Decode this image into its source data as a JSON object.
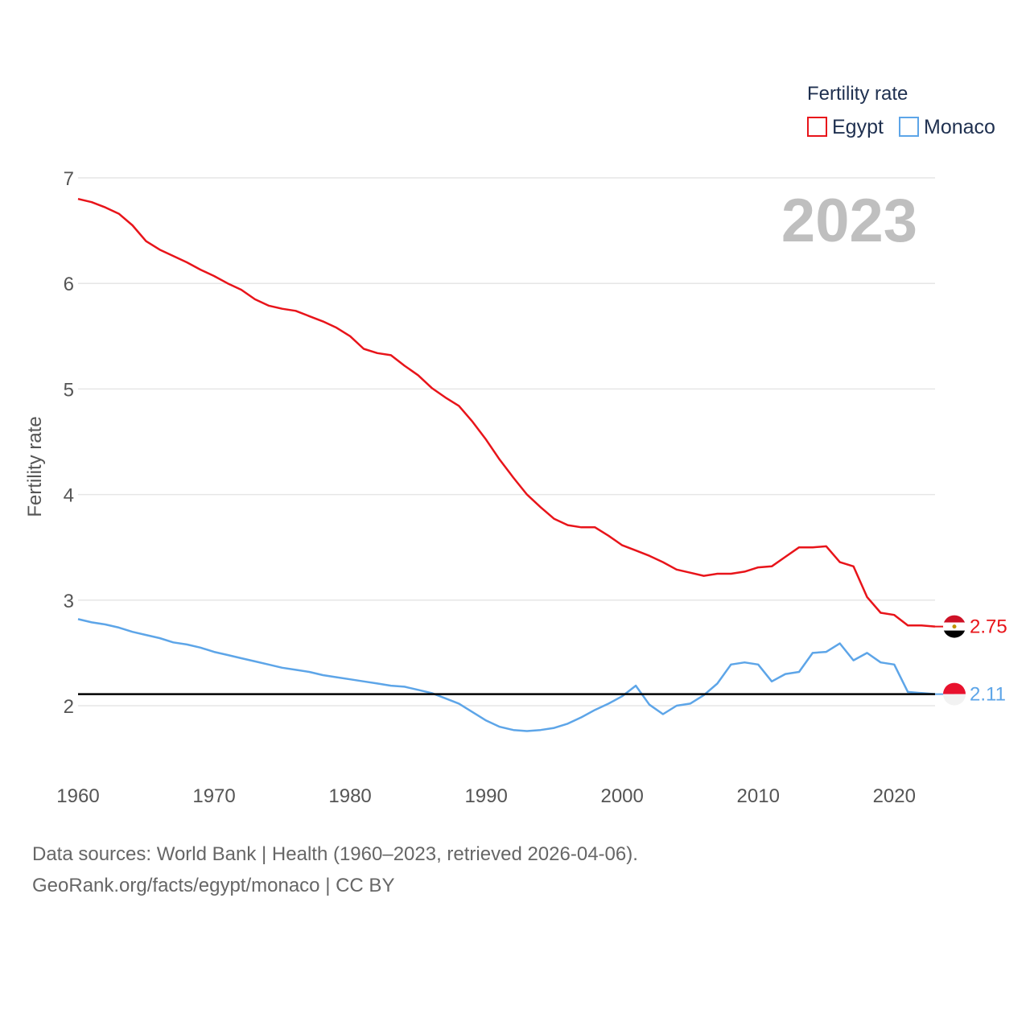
{
  "chart_data": {
    "type": "line",
    "title": "",
    "ylabel": "Fertility rate",
    "xlabel": "",
    "xlim": [
      1960,
      2023
    ],
    "ylim": [
      1.5,
      7
    ],
    "x_ticks": [
      "1960",
      "1970",
      "1980",
      "1990",
      "2000",
      "2010",
      "2020"
    ],
    "y_ticks": [
      "2",
      "3",
      "4",
      "5",
      "6",
      "7"
    ],
    "year_label": "2023",
    "legend": {
      "title": "Fertility rate",
      "position": "top-right"
    },
    "reference_line": {
      "value": 2.11,
      "color": "#000000"
    },
    "x": [
      1960,
      1961,
      1962,
      1963,
      1964,
      1965,
      1966,
      1967,
      1968,
      1969,
      1970,
      1971,
      1972,
      1973,
      1974,
      1975,
      1976,
      1977,
      1978,
      1979,
      1980,
      1981,
      1982,
      1983,
      1984,
      1985,
      1986,
      1987,
      1988,
      1989,
      1990,
      1991,
      1992,
      1993,
      1994,
      1995,
      1996,
      1997,
      1998,
      1999,
      2000,
      2001,
      2002,
      2003,
      2004,
      2005,
      2006,
      2007,
      2008,
      2009,
      2010,
      2011,
      2012,
      2013,
      2014,
      2015,
      2016,
      2017,
      2018,
      2019,
      2020,
      2021,
      2022,
      2023
    ],
    "series": [
      {
        "name": "Egypt",
        "color": "#e8141a",
        "end_label": "2.75",
        "values": [
          6.8,
          6.77,
          6.72,
          6.66,
          6.55,
          6.4,
          6.32,
          6.26,
          6.2,
          6.13,
          6.07,
          6.0,
          5.94,
          5.85,
          5.79,
          5.76,
          5.74,
          5.69,
          5.64,
          5.58,
          5.5,
          5.38,
          5.34,
          5.32,
          5.22,
          5.13,
          5.01,
          4.92,
          4.84,
          4.69,
          4.52,
          4.33,
          4.16,
          4.0,
          3.88,
          3.77,
          3.71,
          3.69,
          3.69,
          3.61,
          3.52,
          3.47,
          3.42,
          3.36,
          3.29,
          3.26,
          3.23,
          3.25,
          3.25,
          3.27,
          3.31,
          3.32,
          3.41,
          3.5,
          3.5,
          3.51,
          3.36,
          3.32,
          3.03,
          2.88,
          2.86,
          2.76,
          2.76,
          2.75
        ]
      },
      {
        "name": "Monaco",
        "color": "#5da5e8",
        "end_label": "2.11",
        "values": [
          2.82,
          2.79,
          2.77,
          2.74,
          2.7,
          2.67,
          2.64,
          2.6,
          2.58,
          2.55,
          2.51,
          2.48,
          2.45,
          2.42,
          2.39,
          2.36,
          2.34,
          2.32,
          2.29,
          2.27,
          2.25,
          2.23,
          2.21,
          2.19,
          2.18,
          2.15,
          2.12,
          2.07,
          2.02,
          1.94,
          1.86,
          1.8,
          1.77,
          1.76,
          1.77,
          1.79,
          1.83,
          1.89,
          1.96,
          2.02,
          2.09,
          2.19,
          2.01,
          1.92,
          2.0,
          2.02,
          2.1,
          2.21,
          2.39,
          2.41,
          2.39,
          2.23,
          2.3,
          2.32,
          2.5,
          2.51,
          2.59,
          2.43,
          2.5,
          2.41,
          2.39,
          2.13,
          2.12,
          2.11
        ]
      }
    ]
  },
  "footer": {
    "line1": "Data sources: World Bank | Health (1960–2023, retrieved 2026-04-06).",
    "line2": "GeoRank.org/facts/egypt/monaco | CC BY"
  }
}
